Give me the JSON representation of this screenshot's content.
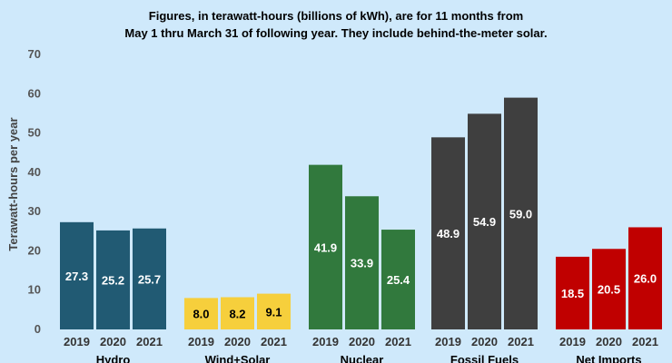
{
  "chart_data": {
    "type": "bar",
    "title_lines": [
      "Figures, in terawatt-hours (billions of kWh), are for 11 months from",
      "May 1 thru March 31 of following year. They include behind-the-meter solar."
    ],
    "ylabel": "Terawatt-hours per year",
    "ylim": [
      0,
      70
    ],
    "yticks": [
      0,
      10,
      20,
      30,
      40,
      50,
      60,
      70
    ],
    "grid": false,
    "groups": [
      {
        "category": "Hydro",
        "color": "#215a73",
        "label_color": "#ffffff",
        "bars": [
          {
            "year": "2019",
            "value": 27.3
          },
          {
            "year": "2020",
            "value": 25.2
          },
          {
            "year": "2021",
            "value": 25.7
          }
        ]
      },
      {
        "category": "Wind+Solar",
        "color": "#f6cf3c",
        "label_color": "#000000",
        "bars": [
          {
            "year": "2019",
            "value": 8.0
          },
          {
            "year": "2020",
            "value": 8.2
          },
          {
            "year": "2021",
            "value": 9.1
          }
        ]
      },
      {
        "category": "Nuclear",
        "color": "#31793d",
        "label_color": "#ffffff",
        "bars": [
          {
            "year": "2019",
            "value": 41.9
          },
          {
            "year": "2020",
            "value": 33.9
          },
          {
            "year": "2021",
            "value": 25.4
          }
        ]
      },
      {
        "category": "Fossil Fuels",
        "color": "#3f3f3f",
        "label_color": "#ffffff",
        "bars": [
          {
            "year": "2019",
            "value": 48.9
          },
          {
            "year": "2020",
            "value": 54.9
          },
          {
            "year": "2021",
            "value": 59.0
          }
        ]
      },
      {
        "category": "Net Imports",
        "color": "#c00000",
        "label_color": "#ffffff",
        "bars": [
          {
            "year": "2019",
            "value": 18.5
          },
          {
            "year": "2020",
            "value": 20.5
          },
          {
            "year": "2021",
            "value": 26.0
          }
        ]
      }
    ]
  }
}
